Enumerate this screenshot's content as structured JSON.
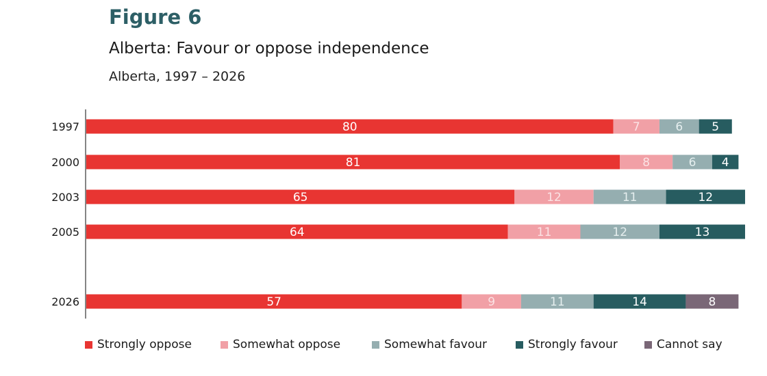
{
  "figure_label": "Figure 6",
  "colors": {
    "strongly_oppose": "#e83532",
    "somewhat_oppose": "#f1a0a6",
    "somewhat_favour": "#95aeb0",
    "strongly_favour": "#275c60",
    "cannot_say": "#7a6777"
  },
  "chart_data": {
    "type": "bar",
    "orientation": "horizontal",
    "stacked": true,
    "title": "Alberta: Favour or oppose independence",
    "subtitle": "Alberta, 1997 – 2026",
    "categories": [
      "1997",
      "2000",
      "2003",
      "2005",
      "2026"
    ],
    "series": [
      {
        "name": "Strongly oppose",
        "color": "#e83532",
        "values": [
          80,
          81,
          65,
          64,
          57
        ]
      },
      {
        "name": "Somewhat oppose",
        "color": "#f1a0a6",
        "values": [
          7,
          8,
          12,
          11,
          9
        ]
      },
      {
        "name": "Somewhat favour",
        "color": "#95aeb0",
        "values": [
          6,
          6,
          11,
          12,
          11
        ]
      },
      {
        "name": "Strongly favour",
        "color": "#275c60",
        "values": [
          5,
          4,
          12,
          13,
          14
        ]
      },
      {
        "name": "Cannot say",
        "color": "#7a6777",
        "values": [
          null,
          null,
          null,
          null,
          8
        ]
      }
    ],
    "legend_position": "bottom",
    "grid": false,
    "data_labels": true
  }
}
